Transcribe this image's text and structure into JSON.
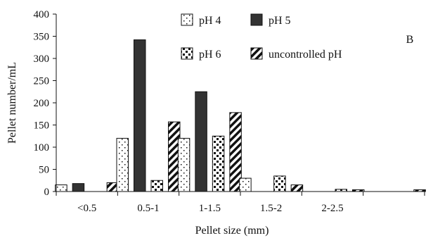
{
  "chart_data": {
    "type": "bar",
    "panel_label": "B",
    "xlabel": "Pellet size (mm)",
    "ylabel": "Pellet number/mL",
    "ylim": [
      0,
      400
    ],
    "yticks": [
      0,
      50,
      100,
      150,
      200,
      250,
      300,
      350,
      400
    ],
    "categories": [
      "<0.5",
      "0.5-1",
      "1-1.5",
      "1.5-2",
      "2-2.5",
      ""
    ],
    "series": [
      {
        "name": "pH 4",
        "pattern": "dotted",
        "values": [
          15,
          120,
          120,
          30,
          0,
          0
        ]
      },
      {
        "name": "pH 5",
        "pattern": "solid",
        "values": [
          18,
          342,
          225,
          0,
          0,
          0
        ]
      },
      {
        "name": "pH 6",
        "pattern": "checker",
        "values": [
          0,
          25,
          125,
          35,
          5,
          0
        ]
      },
      {
        "name": "uncontrolled pH",
        "pattern": "diagonal",
        "values": [
          20,
          157,
          178,
          15,
          4,
          4
        ]
      }
    ],
    "legend_position": "top-center",
    "grid": false,
    "colors": {
      "pH 5": "#333333",
      "stroke": "#111111",
      "background": "#ffffff"
    }
  }
}
